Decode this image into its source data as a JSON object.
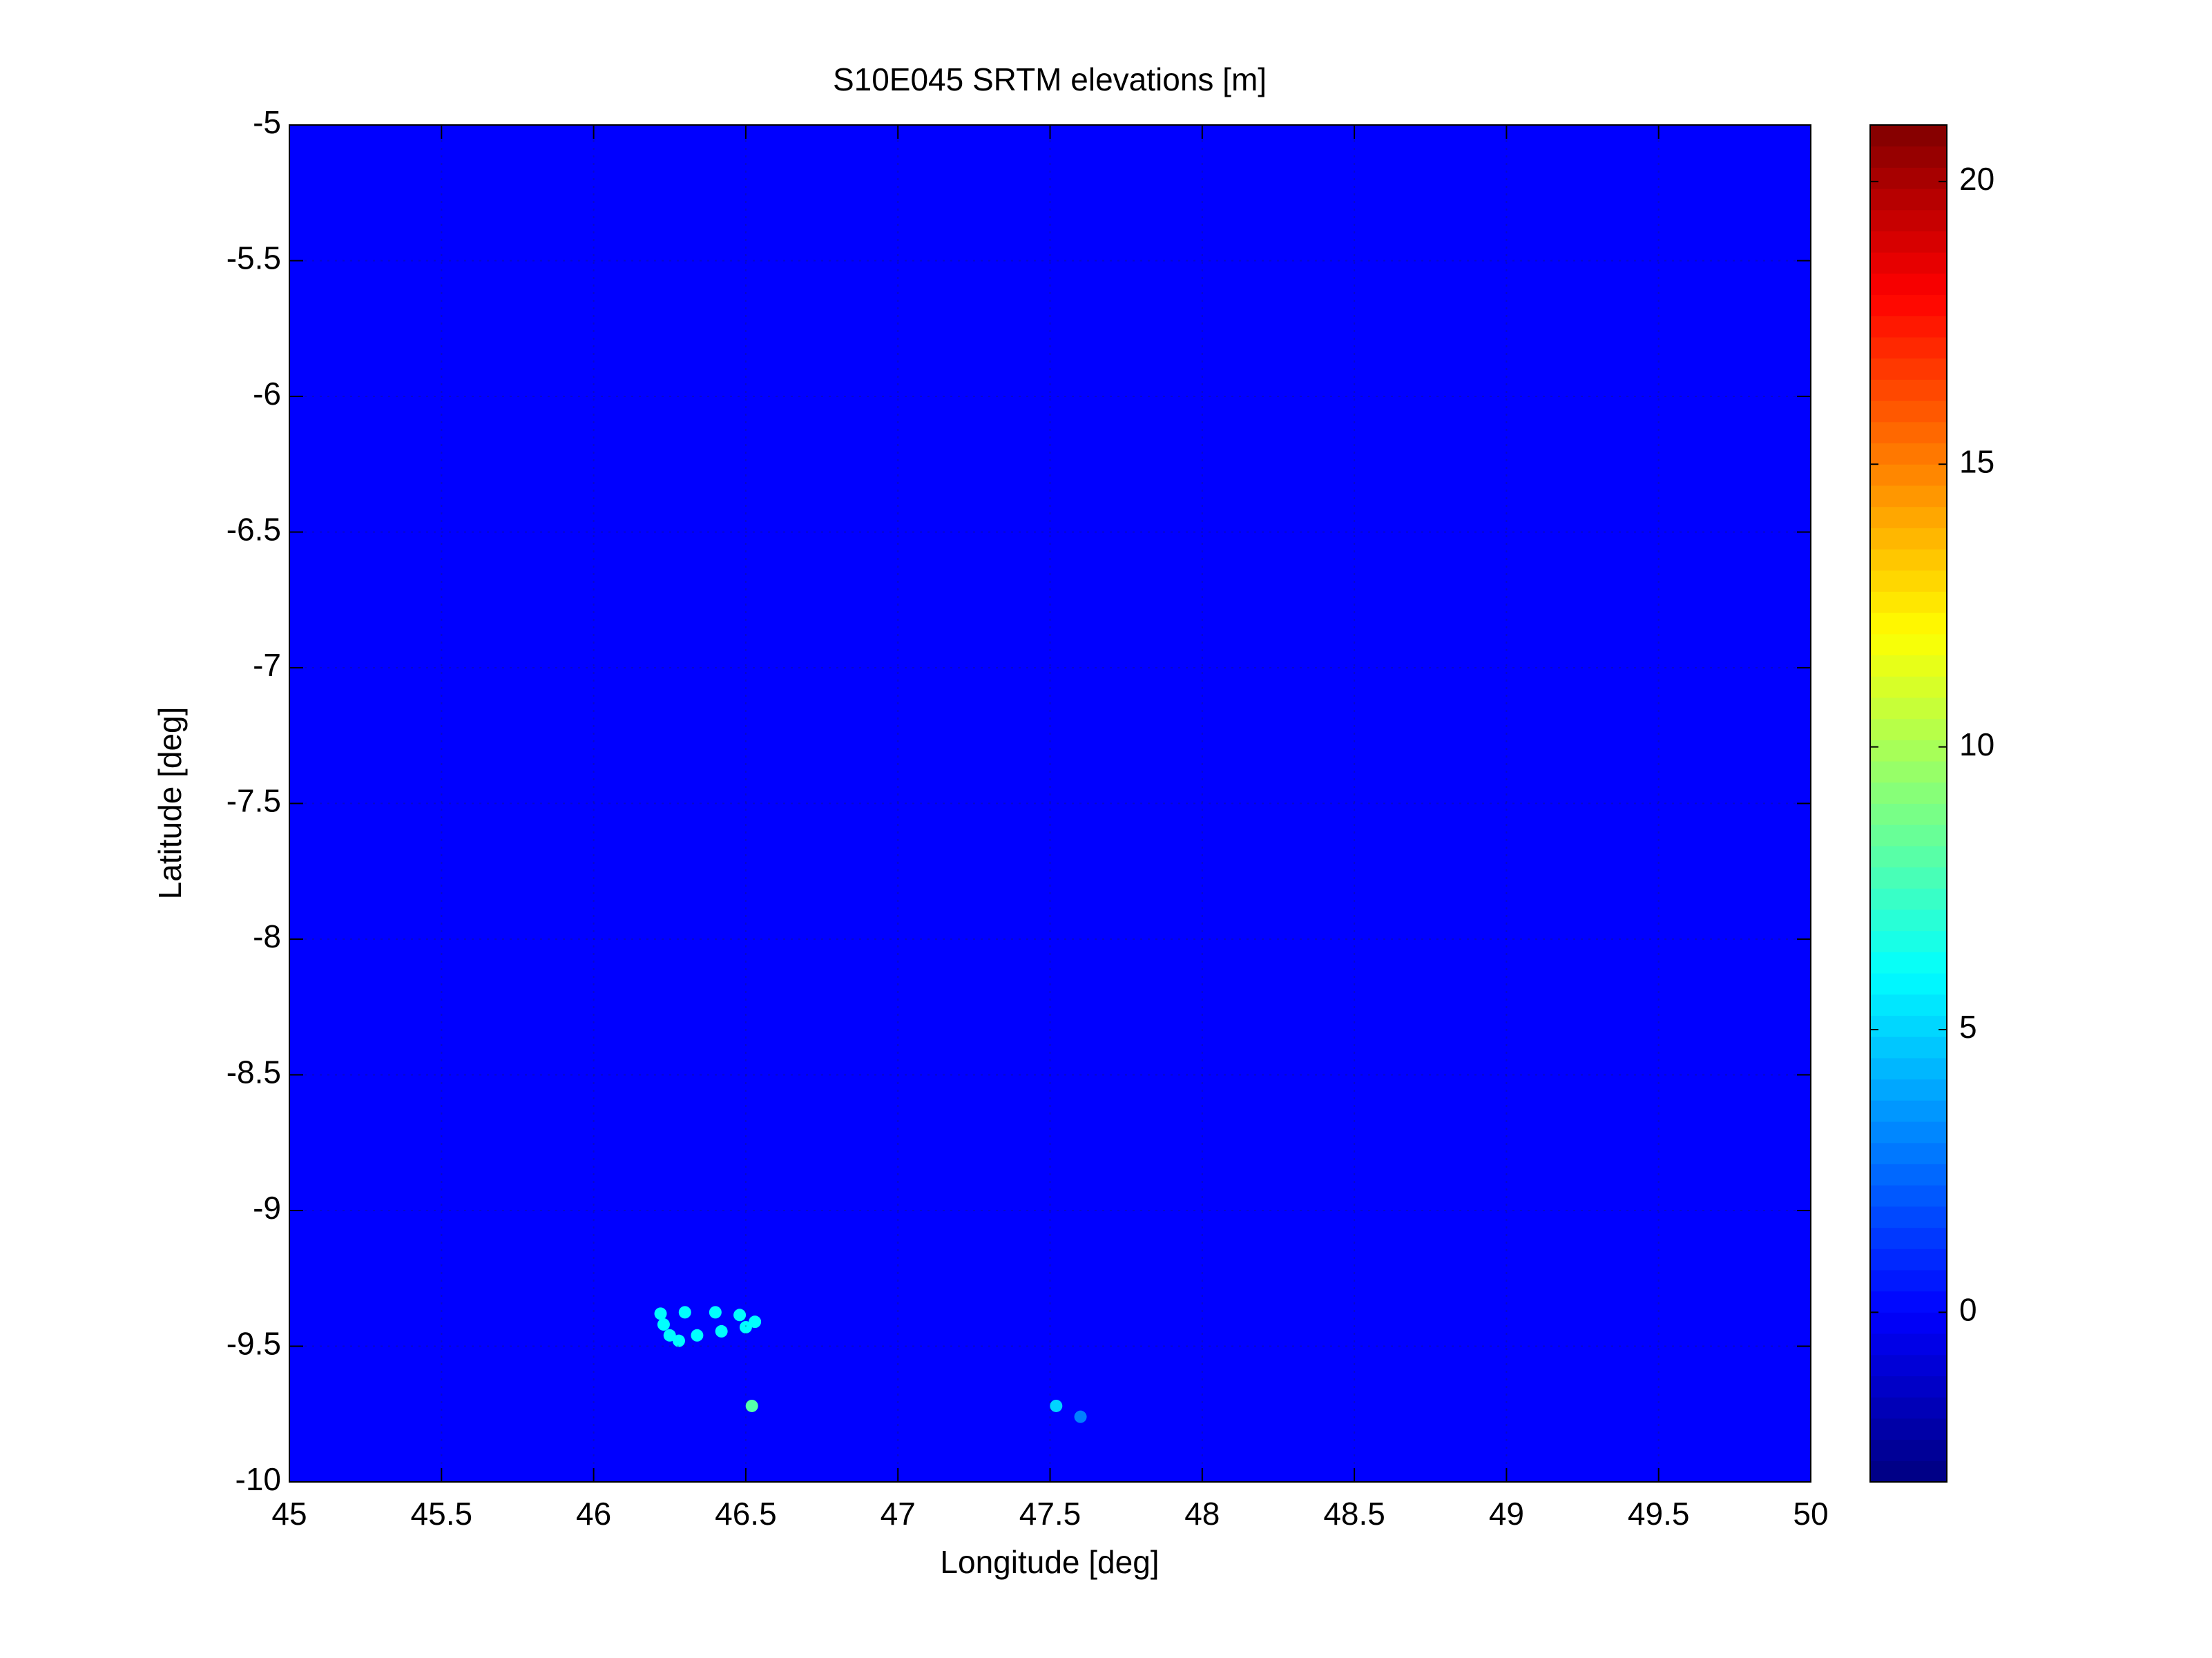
{
  "chart_data": {
    "type": "heatmap",
    "title": "S10E045 SRTM elevations [m]",
    "xlabel": "Longitude [deg]",
    "ylabel": "Latitude [deg]",
    "xlim": [
      45,
      50
    ],
    "ylim": [
      -10,
      -5
    ],
    "xticks": [
      45,
      45.5,
      46,
      46.5,
      47,
      47.5,
      48,
      48.5,
      49,
      49.5,
      50
    ],
    "yticks": [
      -10,
      -9.5,
      -9,
      -8.5,
      -8,
      -7.5,
      -7,
      -6.5,
      -6,
      -5.5,
      -5
    ],
    "grid": true,
    "colormap": "jet",
    "clim": [
      -3,
      21
    ],
    "cticks": [
      0,
      5,
      10,
      15,
      20
    ],
    "background_value": 0,
    "points": {
      "x": [
        46.22,
        46.3,
        46.4,
        46.48,
        46.53,
        46.5,
        46.42,
        46.34,
        46.28,
        46.25,
        46.23,
        46.52,
        47.52,
        47.6
      ],
      "y": [
        -9.38,
        -9.375,
        -9.375,
        -9.385,
        -9.41,
        -9.43,
        -9.445,
        -9.46,
        -9.48,
        -9.46,
        -9.42,
        -9.72,
        -9.72,
        -9.76
      ],
      "values": [
        6,
        6,
        6,
        6,
        6,
        6,
        6,
        6,
        6,
        6,
        6,
        8,
        5,
        3
      ]
    }
  }
}
